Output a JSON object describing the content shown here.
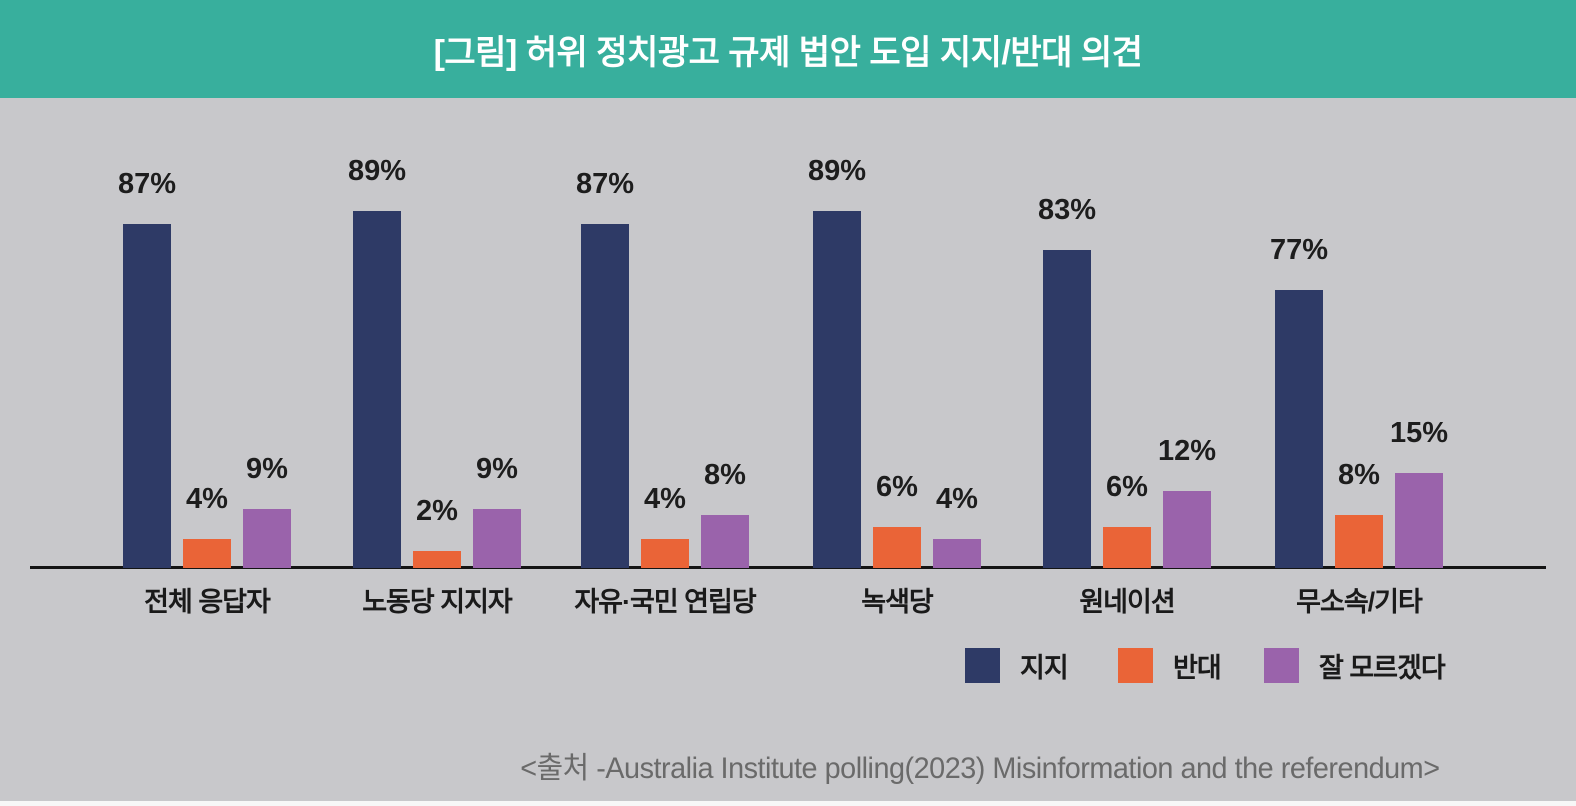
{
  "header": {
    "title": "[그림] 허위 정치광고 규제 법안 도입 지지/반대 의견",
    "bg_color": "#38af9d",
    "title_color": "#ffffff"
  },
  "chart_data": {
    "type": "bar",
    "title": "[그림] 허위 정치광고 규제 법안 도입 지지/반대 의견",
    "categories": [
      "전체 응답자",
      "노동당 지지자",
      "자유·국민 연립당",
      "녹색당",
      "원네이션",
      "무소속/기타"
    ],
    "series": [
      {
        "name": "지지",
        "color": "#2e3a66",
        "values": [
          87,
          89,
          87,
          89,
          83,
          77
        ]
      },
      {
        "name": "반대",
        "color": "#ea6437",
        "values": [
          4,
          2,
          4,
          6,
          6,
          8
        ]
      },
      {
        "name": "잘 모르겠다",
        "color": "#9a63ab",
        "values": [
          9,
          9,
          8,
          4,
          12,
          15
        ]
      }
    ],
    "value_suffix": "%",
    "xlabel": "",
    "ylabel": "",
    "ylim": [
      0,
      100
    ],
    "grid": false,
    "legend_position": "bottom-right",
    "axis_color": "#141414",
    "background_color": "#c8c8cb"
  },
  "source": "<출처 -Australia Institute polling(2023) Misinformation and the referendum>"
}
